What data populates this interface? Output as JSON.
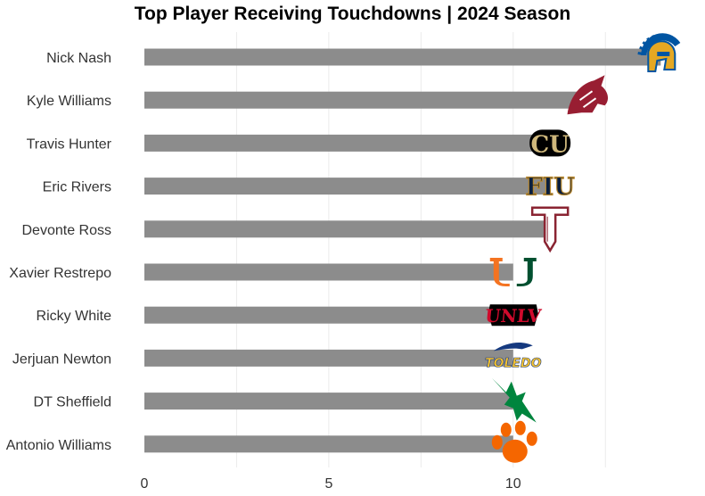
{
  "chart_data": {
    "type": "bar",
    "orientation": "horizontal",
    "title": "Top Player Receiving Touchdowns | 2024 Season",
    "xlabel": "",
    "ylabel": "",
    "categories": [
      "Nick Nash",
      "Kyle Williams",
      "Travis Hunter",
      "Eric Rivers",
      "Devonte Ross",
      "Xavier Restrepo",
      "Ricky White",
      "Jerjuan Newton",
      "DT Sheffield",
      "Antonio Williams"
    ],
    "values": [
      14,
      12,
      11,
      11,
      11,
      10,
      10,
      10,
      10,
      10
    ],
    "xlim": [
      0,
      14.5
    ],
    "xticks": [
      0,
      5,
      10
    ],
    "grid": true,
    "bar_color": "#8c8c8c",
    "logos": [
      {
        "team": "San Jose State",
        "icon": "spartan-head-logo",
        "colors": [
          "#0055a2",
          "#e5a823"
        ]
      },
      {
        "team": "Washington State",
        "icon": "cougar-head-logo",
        "colors": [
          "#981e32"
        ]
      },
      {
        "team": "Colorado",
        "icon": "cu-logo",
        "colors": [
          "#000000",
          "#cfb87c"
        ],
        "text": "CU"
      },
      {
        "team": "FIU",
        "icon": "fiu-logo",
        "colors": [
          "#081e3f",
          "#b6862c"
        ],
        "text": "FIU"
      },
      {
        "team": "Troy",
        "icon": "troy-t-logo",
        "colors": [
          "#8a2432",
          "#ffffff"
        ]
      },
      {
        "team": "Miami",
        "icon": "split-u-logo",
        "colors": [
          "#f47321",
          "#005030"
        ]
      },
      {
        "team": "UNLV",
        "icon": "unlv-logo",
        "colors": [
          "#cf0a2c",
          "#000000"
        ],
        "text": "UNLV"
      },
      {
        "team": "Toledo",
        "icon": "toledo-logo",
        "colors": [
          "#ffc72c",
          "#15397f"
        ],
        "text": "TOLEDO"
      },
      {
        "team": "North Texas",
        "icon": "eagle-logo",
        "colors": [
          "#00853e"
        ]
      },
      {
        "team": "Clemson",
        "icon": "tiger-paw-logo",
        "colors": [
          "#f56600"
        ]
      }
    ]
  }
}
